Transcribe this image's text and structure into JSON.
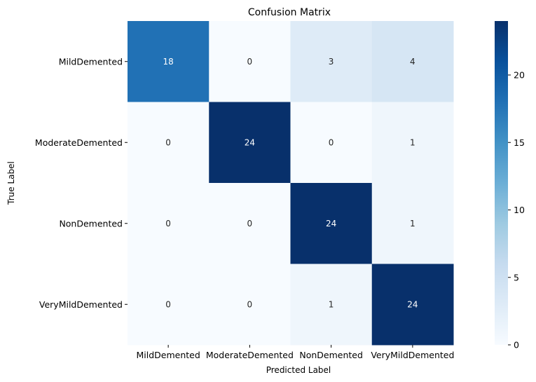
{
  "chart_data": {
    "type": "heatmap",
    "title": "Confusion Matrix",
    "xlabel": "Predicted Label",
    "ylabel": "True Label",
    "x_categories": [
      "MildDemented",
      "ModerateDemented",
      "NonDemented",
      "VeryMildDemented"
    ],
    "y_categories": [
      "MildDemented",
      "ModerateDemented",
      "NonDemented",
      "VeryMildDemented"
    ],
    "values": [
      [
        18,
        0,
        3,
        4
      ],
      [
        0,
        24,
        0,
        1
      ],
      [
        0,
        0,
        24,
        1
      ],
      [
        0,
        0,
        1,
        24
      ]
    ],
    "colorbar": {
      "colormap": "Blues",
      "vmin": 0,
      "vmax": 24,
      "ticks": [
        0,
        5,
        10,
        15,
        20
      ]
    },
    "grid": false,
    "annotations": true
  }
}
